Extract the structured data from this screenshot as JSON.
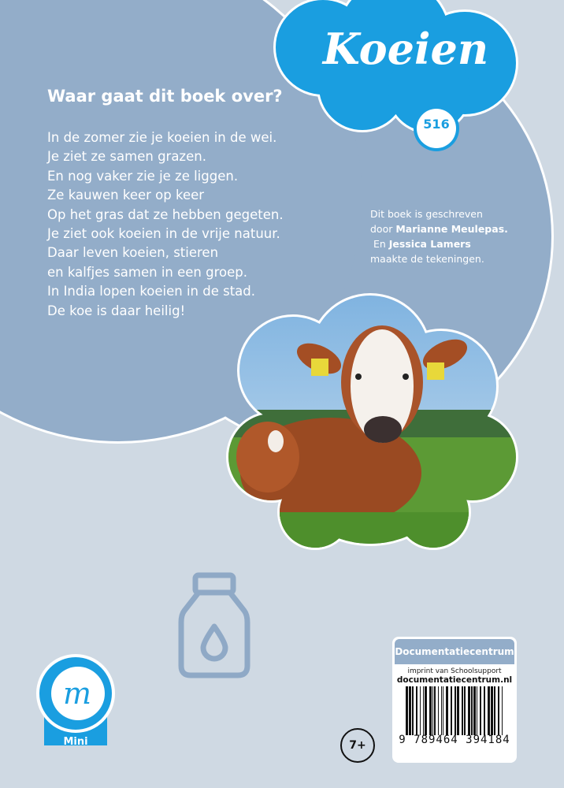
{
  "cover": {
    "title": "Koeien",
    "series_number": "516",
    "heading": "Waar gaat dit boek over?",
    "blurb_lines": [
      "In de zomer zie je koeien in de wei.",
      "Je ziet ze samen grazen.",
      "En nog vaker zie je ze liggen.",
      "Ze kauwen keer op keer",
      "Op het gras dat ze hebben gegeten.",
      "Je ziet ook koeien in de vrije natuur.",
      "Daar leven koeien, stieren",
      "en kalfjes samen in een groep.",
      "In India lopen koeien in de stad.",
      "De koe is daar heilig!"
    ],
    "credits": {
      "line1": "Dit boek is geschreven",
      "line2_prefix": "door ",
      "author": "Marianne Meulepas.",
      "line3_prefix": " En ",
      "illustrator": "Jessica Lamers",
      "line4": "maakte de tekeningen."
    },
    "age_badge": "7+",
    "series_logo": {
      "label": "Mini",
      "letter": "m"
    },
    "icon": "milk-bottle-icon",
    "publisher": {
      "name": "Documentatiecentrum",
      "imprint": "imprint van Schoolsupport",
      "website": "documentatiecentrum.nl",
      "isbn": "9 789464 394184"
    },
    "colors": {
      "background": "#cfd9e3",
      "cloud": "#93adc9",
      "accent": "#1a9ee0"
    }
  }
}
